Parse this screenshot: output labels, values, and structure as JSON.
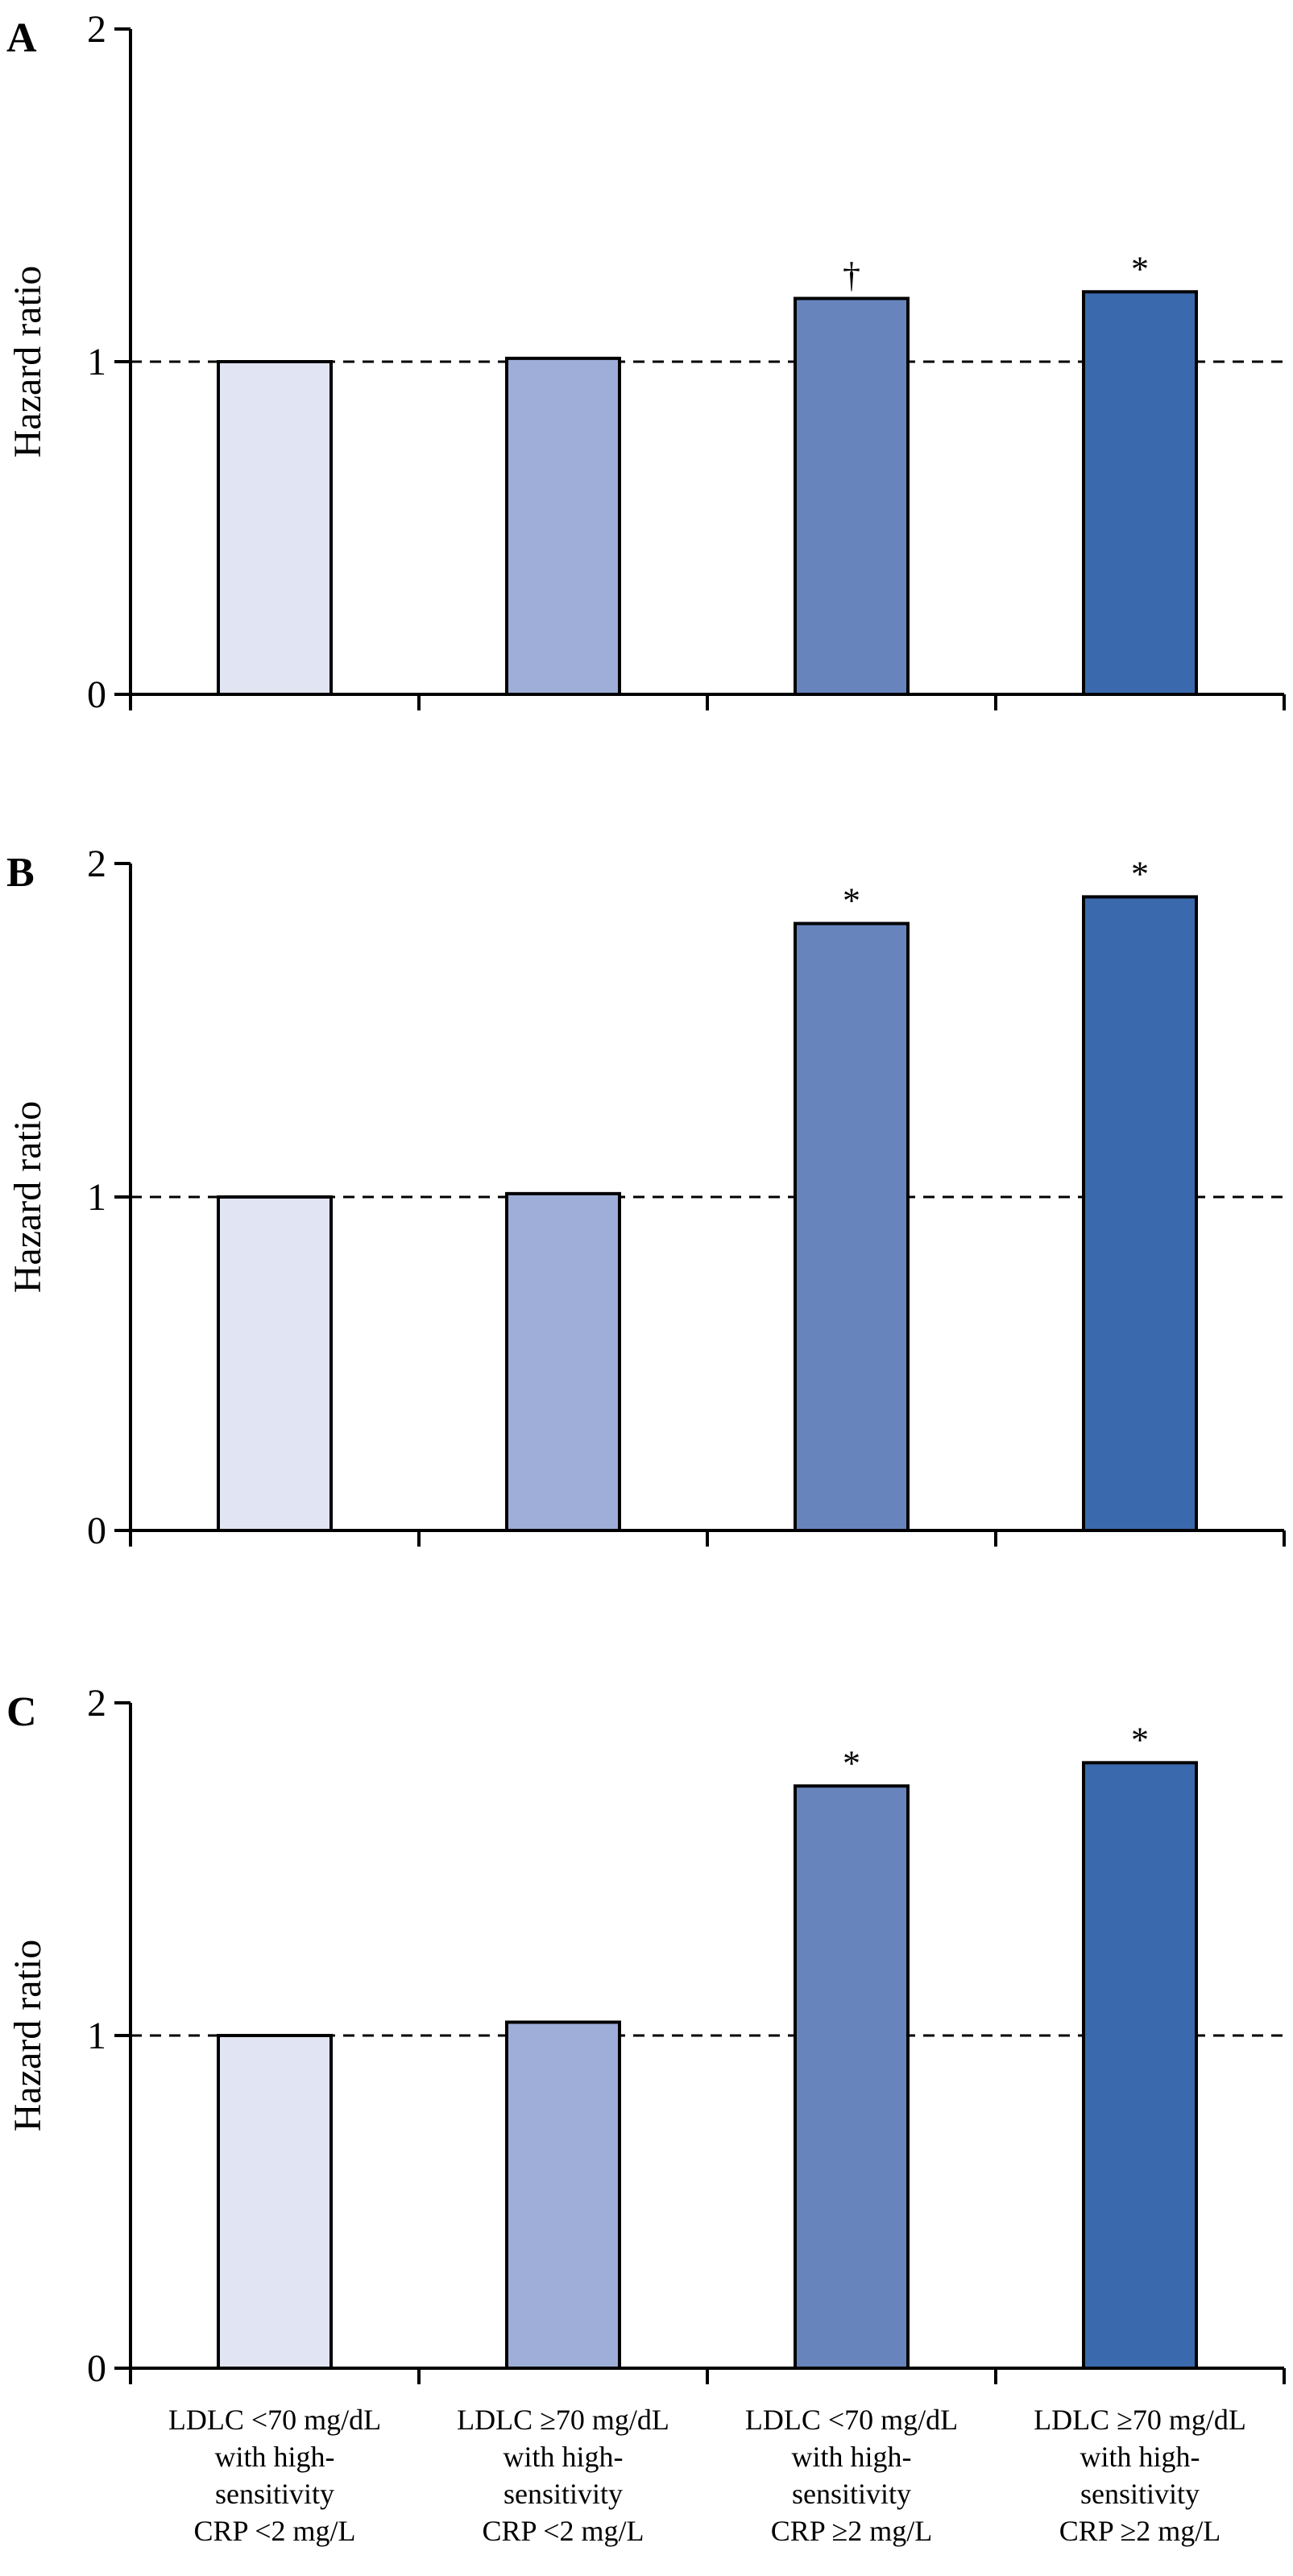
{
  "chart_data": [
    {
      "type": "bar",
      "panel": "A",
      "ylabel": "Hazard ratio",
      "ylim": [
        0,
        2
      ],
      "yticks": [
        "0",
        "1",
        "2"
      ],
      "reference_line": 1,
      "categories": [
        "LDLC <70 mg/dL with high-sensitivity CRP <2 mg/L",
        "LDLC ≥70 mg/dL with high-sensitivity CRP <2 mg/L",
        "LDLC <70 mg/dL with high-sensitivity CRP ≥2 mg/L",
        "LDLC ≥70 mg/dL with high-sensitivity CRP ≥2 mg/L"
      ],
      "values": [
        1.0,
        1.01,
        1.19,
        1.21
      ],
      "annotations": [
        "",
        "",
        "†",
        "*"
      ],
      "colors": [
        "#e0e4f3",
        "#9eaed8",
        "#6784bd",
        "#3a6aad"
      ]
    },
    {
      "type": "bar",
      "panel": "B",
      "ylabel": "Hazard ratio",
      "ylim": [
        0,
        2
      ],
      "yticks": [
        "0",
        "1",
        "2"
      ],
      "reference_line": 1,
      "categories": [
        "LDLC <70 mg/dL with high-sensitivity CRP <2 mg/L",
        "LDLC ≥70 mg/dL with high-sensitivity CRP <2 mg/L",
        "LDLC <70 mg/dL with high-sensitivity CRP ≥2 mg/L",
        "LDLC ≥70 mg/dL with high-sensitivity CRP ≥2 mg/L"
      ],
      "values": [
        1.0,
        1.01,
        1.82,
        1.9
      ],
      "annotations": [
        "",
        "",
        "*",
        "*"
      ],
      "colors": [
        "#e0e4f3",
        "#9eaed8",
        "#6784bd",
        "#3a6aad"
      ]
    },
    {
      "type": "bar",
      "panel": "C",
      "ylabel": "Hazard ratio",
      "ylim": [
        0,
        2
      ],
      "yticks": [
        "0",
        "1",
        "2"
      ],
      "reference_line": 1,
      "categories": [
        "LDLC <70 mg/dL with high-sensitivity CRP <2 mg/L",
        "LDLC ≥70 mg/dL with high-sensitivity CRP <2 mg/L",
        "LDLC <70 mg/dL with high-sensitivity CRP ≥2 mg/L",
        "LDLC ≥70 mg/dL with high-sensitivity CRP ≥2 mg/L"
      ],
      "category_label_lines": [
        [
          "LDLC <70 mg/dL",
          "with high-",
          "sensitivity",
          "CRP <2 mg/L"
        ],
        [
          "LDLC ≥70 mg/dL",
          "with high-",
          "sensitivity",
          "CRP <2 mg/L"
        ],
        [
          "LDLC <70 mg/dL",
          "with high-",
          "sensitivity",
          "CRP ≥2 mg/L"
        ],
        [
          "LDLC ≥70 mg/dL",
          "with high-",
          "sensitivity",
          "CRP ≥2 mg/L"
        ]
      ],
      "values": [
        1.0,
        1.04,
        1.75,
        1.82
      ],
      "annotations": [
        "",
        "",
        "*",
        "*"
      ],
      "colors": [
        "#e0e4f3",
        "#9eaed8",
        "#6784bd",
        "#3a6aad"
      ]
    }
  ]
}
